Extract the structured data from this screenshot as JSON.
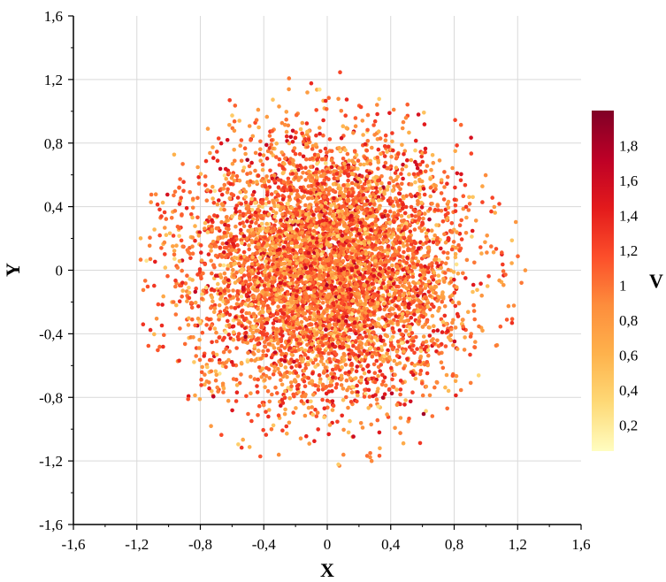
{
  "chart_data": {
    "type": "scatter",
    "title": "",
    "xlabel": "X",
    "ylabel": "Y",
    "xlim": [
      -1.6,
      1.6
    ],
    "ylim": [
      -1.6,
      1.6
    ],
    "x_ticks": [
      "-1,6",
      "-1,2",
      "-0,8",
      "-0,4",
      "0",
      "0,4",
      "0,8",
      "1,2",
      "1,6"
    ],
    "y_ticks": [
      "-1,6",
      "-1,2",
      "-0,8",
      "-0,4",
      "0",
      "0,4",
      "0,8",
      "1,2",
      "1,6"
    ],
    "grid": true,
    "colorbar": {
      "label": "V",
      "range": [
        0.05,
        2.0
      ],
      "ticks": [
        "0,2",
        "0,4",
        "0,6",
        "0,8",
        "1",
        "1,2",
        "1,4",
        "1,6",
        "1,8"
      ],
      "colors": [
        "#fffdc0",
        "#fed976",
        "#feb24c",
        "#fd8d3c",
        "#fc4e2a",
        "#e31a1c",
        "#bd0026",
        "#800026"
      ]
    },
    "points": {
      "distribution": "2D Gaussian point cloud truncated to a disk",
      "count": 6000,
      "center": [
        0,
        0
      ],
      "sigma": 0.42,
      "max_radius": 1.25,
      "value_mean": 1.0,
      "value_sd": 0.3
    }
  }
}
